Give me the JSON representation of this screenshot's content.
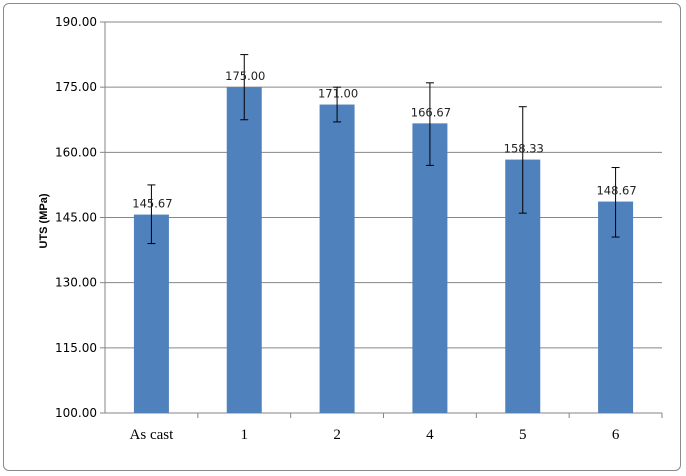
{
  "chart_data": {
    "type": "bar",
    "title": "",
    "xlabel": "",
    "ylabel": "UTS (MPa)",
    "categories": [
      "As cast",
      "1",
      "2",
      "4",
      "5",
      "6"
    ],
    "values": [
      145.67,
      175.0,
      171.0,
      166.67,
      158.33,
      148.67
    ],
    "value_labels": [
      "145.67",
      "175.00",
      "171.00",
      "166.67",
      "158.33",
      "148.67"
    ],
    "error_low": [
      139.0,
      167.5,
      167.0,
      157.0,
      146.0,
      140.5
    ],
    "error_high": [
      152.5,
      182.5,
      175.0,
      176.0,
      170.5,
      156.5
    ],
    "ylim": [
      100,
      190
    ],
    "yticks": [
      "100.00",
      "115.00",
      "130.00",
      "145.00",
      "160.00",
      "175.00",
      "190.00"
    ],
    "ytick_values": [
      100,
      115,
      130,
      145,
      160,
      175,
      190
    ],
    "grid": true,
    "legend": "none",
    "colors": {
      "bar": "#4f81bd",
      "grid": "#868686",
      "axis": "#868686",
      "error": "#000000"
    }
  }
}
